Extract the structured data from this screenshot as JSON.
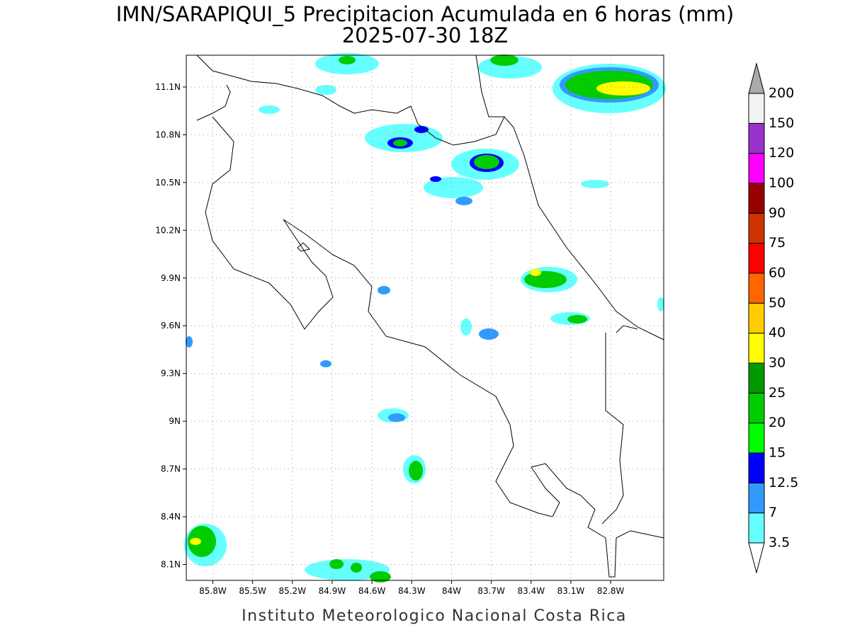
{
  "title": "IMN/SARAPIQUI_5 Precipitacion Acumulada en 6 horas (mm)",
  "subtitle": "2025-07-30 18Z",
  "footer": "Instituto Meteorologico Nacional Costa Rica",
  "map": {
    "xlim": [
      -86.0,
      -82.4
    ],
    "ylim": [
      8.0,
      11.3
    ],
    "grid": true,
    "xticks": [
      {
        "value": -85.8,
        "label": "85.8W"
      },
      {
        "value": -85.5,
        "label": "85.5W"
      },
      {
        "value": -85.2,
        "label": "85.2W"
      },
      {
        "value": -84.9,
        "label": "84.9W"
      },
      {
        "value": -84.6,
        "label": "84.6W"
      },
      {
        "value": -84.3,
        "label": "84.3W"
      },
      {
        "value": -84.0,
        "label": "84W"
      },
      {
        "value": -83.7,
        "label": "83.7W"
      },
      {
        "value": -83.4,
        "label": "83.4W"
      },
      {
        "value": -83.1,
        "label": "83.1W"
      },
      {
        "value": -82.8,
        "label": "82.8W"
      }
    ],
    "yticks": [
      {
        "value": 8.1,
        "label": "8.1N"
      },
      {
        "value": 8.4,
        "label": "8.4N"
      },
      {
        "value": 8.7,
        "label": "8.7N"
      },
      {
        "value": 9.0,
        "label": "9N"
      },
      {
        "value": 9.3,
        "label": "9.3N"
      },
      {
        "value": 9.6,
        "label": "9.6N"
      },
      {
        "value": 9.9,
        "label": "9.9N"
      },
      {
        "value": 10.2,
        "label": "10.2N"
      },
      {
        "value": 10.5,
        "label": "10.5N"
      },
      {
        "value": 10.8,
        "label": "10.8N"
      },
      {
        "value": 11.1,
        "label": "11.1N"
      }
    ]
  },
  "colorbar": {
    "levels": [
      3.5,
      7,
      12.5,
      15,
      20,
      25,
      30,
      40,
      50,
      60,
      75,
      90,
      100,
      120,
      150,
      200
    ],
    "colors": [
      "#66ffff",
      "#3399ff",
      "#0000ff",
      "#00ff00",
      "#00cc00",
      "#009900",
      "#ffff00",
      "#ffcc00",
      "#ff6600",
      "#ff0000",
      "#cc3300",
      "#990000",
      "#ff00ff",
      "#9933cc",
      "#f2f2f2"
    ],
    "under_color": "#ffffff",
    "over_color": "#aaaaaa"
  }
}
